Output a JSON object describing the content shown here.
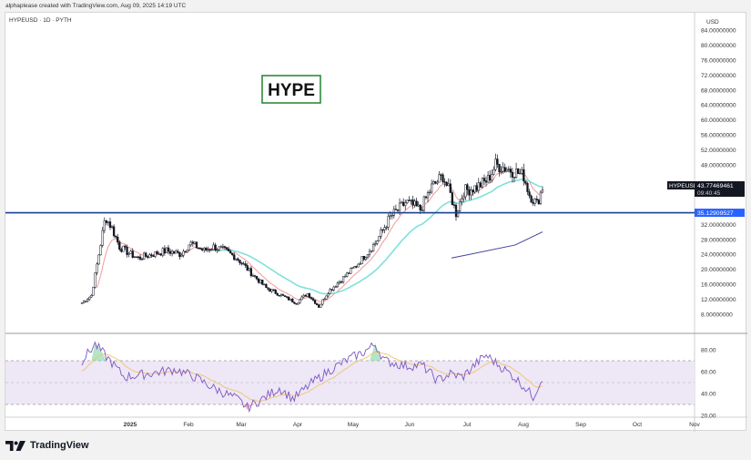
{
  "header": {
    "text": "alphaplease created with TradingView.com, Aug 09, 2025 14:19 UTC"
  },
  "chart": {
    "symbol_label": "HYPEUSD · 1D · PYTH",
    "title_box": "HYPE",
    "currency": "USD",
    "price_ticks": [
      "84.00000000",
      "80.00000000",
      "76.00000000",
      "72.00000000",
      "68.00000000",
      "64.00000000",
      "60.00000000",
      "56.00000000",
      "52.00000000",
      "48.00000000",
      "40.00000000",
      "32.00000000",
      "28.00000000",
      "24.00000000",
      "20.00000000",
      "16.00000000",
      "12.00000000",
      "8.00000000"
    ],
    "price_tick_values": [
      84,
      80,
      76,
      72,
      68,
      64,
      60,
      56,
      52,
      48,
      40,
      32,
      28,
      24,
      20,
      16,
      12,
      8
    ],
    "current_price": {
      "symbol": "HYPEUSD",
      "value": "43.77469461",
      "countdown": "09:40:45"
    },
    "horizontal_line": {
      "value": 35.12909527,
      "label": "35.12909527"
    },
    "rsi_ticks": [
      "80.00",
      "60.00",
      "40.00",
      "20.00"
    ],
    "rsi_tick_values": [
      80,
      60,
      40,
      20
    ],
    "time_labels": [
      "2025",
      "Feb",
      "Mar",
      "Apr",
      "May",
      "Jun",
      "Jul",
      "Aug",
      "Sep",
      "Oct",
      "Nov"
    ]
  },
  "colors": {
    "candle": "#131722",
    "hline": "#1a3f8f",
    "hline_label_bg": "#2962ff",
    "title_border": "#2e8b3a",
    "ema_fast": "#f19a9a",
    "ema_mid": "#7fe0da",
    "ema_slow": "#3f3fa0",
    "rsi_line": "#7e57c2",
    "rsi_ma": "#f0c36a",
    "rsi_band": "#ede7f6"
  },
  "footer": {
    "brand": "TradingView"
  }
}
